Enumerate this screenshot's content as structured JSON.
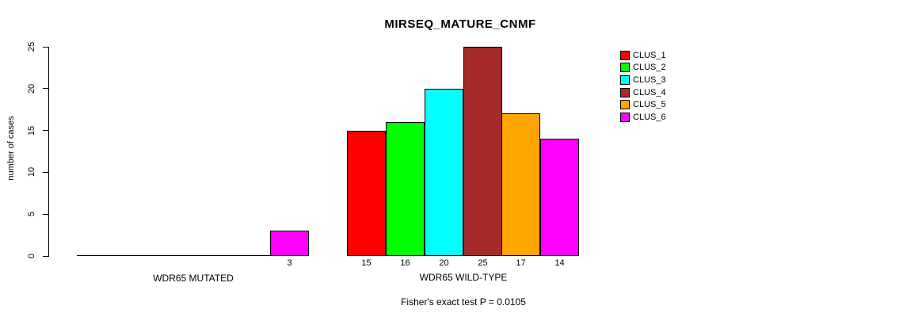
{
  "chart_data": {
    "type": "bar",
    "title": "MIRSEQ_MATURE_CNMF",
    "ylabel": "number of cases",
    "xlabel": "",
    "ylim": [
      0,
      25
    ],
    "yticks": [
      0,
      5,
      10,
      15,
      20,
      25
    ],
    "grid": false,
    "legend_position": "right",
    "series": [
      {
        "name": "CLUS_1",
        "color": "#FF0000",
        "values": [
          0,
          15
        ]
      },
      {
        "name": "CLUS_2",
        "color": "#00FF00",
        "values": [
          0,
          16
        ]
      },
      {
        "name": "CLUS_3",
        "color": "#00FFFF",
        "values": [
          0,
          20
        ]
      },
      {
        "name": "CLUS_4",
        "color": "#A52A2A",
        "values": [
          0,
          25
        ]
      },
      {
        "name": "CLUS_5",
        "color": "#FFA500",
        "values": [
          0,
          17
        ]
      },
      {
        "name": "CLUS_6",
        "color": "#FF00FF",
        "values": [
          3,
          14
        ]
      }
    ],
    "groups": [
      {
        "label": "WDR65 MUTATED",
        "values": [
          0,
          0,
          0,
          0,
          0,
          3
        ]
      },
      {
        "label": "WDR65 WILD-TYPE",
        "values": [
          15,
          16,
          20,
          25,
          17,
          14
        ]
      }
    ],
    "bar_value_labels_shown": [
      "3",
      "15",
      "16",
      "20",
      "25",
      "17",
      "14"
    ],
    "annotation": "Fisher's exact test P = 0.0105",
    "axis_color": "#000000",
    "background_color": "#FFFFFF"
  }
}
